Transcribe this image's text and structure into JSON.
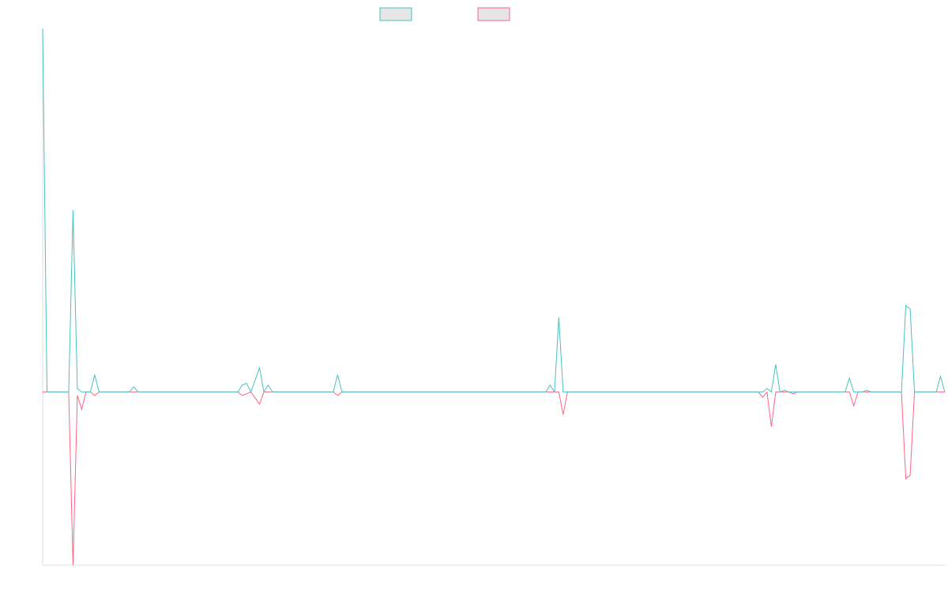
{
  "colors": {
    "series_a": "#4bc0c0",
    "series_b": "#ff6384",
    "legend_fill": "#e6e6e6",
    "axis": "#e0e0e0"
  },
  "chart_data": {
    "type": "line",
    "title": "",
    "xlabel": "",
    "ylabel": "",
    "legend": "top-center",
    "grid": false,
    "x_count": 208,
    "ylim": [
      -1,
      2.1
    ],
    "series": [
      {
        "name": "",
        "color": "#4bc0c0",
        "points": [
          [
            0,
            2.1
          ],
          [
            1,
            0
          ],
          [
            6,
            0
          ],
          [
            7,
            1.05
          ],
          [
            8,
            0.02
          ],
          [
            9,
            0
          ],
          [
            11,
            0
          ],
          [
            12,
            0.1
          ],
          [
            13,
            0
          ],
          [
            20,
            0
          ],
          [
            21,
            0.03
          ],
          [
            22,
            0
          ],
          [
            45,
            0
          ],
          [
            46,
            0.04
          ],
          [
            47,
            0.05
          ],
          [
            48,
            0
          ],
          [
            50,
            0.14
          ],
          [
            51,
            0
          ],
          [
            52,
            0.04
          ],
          [
            53,
            0
          ],
          [
            67,
            0
          ],
          [
            68,
            0.1
          ],
          [
            69,
            0
          ],
          [
            116,
            0
          ],
          [
            117,
            0.04
          ],
          [
            118,
            0
          ],
          [
            119,
            0.43
          ],
          [
            120,
            0
          ],
          [
            166,
            0
          ],
          [
            167,
            0.02
          ],
          [
            168,
            0
          ],
          [
            169,
            0.16
          ],
          [
            170,
            0
          ],
          [
            171,
            0.01
          ],
          [
            172,
            0
          ],
          [
            185,
            0
          ],
          [
            186,
            0.08
          ],
          [
            187,
            0
          ],
          [
            189,
            0
          ],
          [
            190,
            0.01
          ],
          [
            191,
            0
          ],
          [
            198,
            0
          ],
          [
            199,
            0.5
          ],
          [
            200,
            0.48
          ],
          [
            201,
            0
          ],
          [
            206,
            0
          ],
          [
            207,
            0.09
          ],
          [
            208,
            0
          ]
        ]
      },
      {
        "name": "",
        "color": "#ff6384",
        "points": [
          [
            0,
            0
          ],
          [
            1,
            0
          ],
          [
            6,
            0
          ],
          [
            7,
            -1
          ],
          [
            8,
            -0.02
          ],
          [
            9,
            -0.1
          ],
          [
            10,
            0
          ],
          [
            11,
            0
          ],
          [
            12,
            -0.02
          ],
          [
            13,
            0
          ],
          [
            45,
            0
          ],
          [
            46,
            -0.02
          ],
          [
            48,
            0
          ],
          [
            50,
            -0.07
          ],
          [
            51,
            0
          ],
          [
            67,
            0
          ],
          [
            68,
            -0.02
          ],
          [
            69,
            0
          ],
          [
            119,
            0
          ],
          [
            120,
            -0.13
          ],
          [
            121,
            0
          ],
          [
            165,
            0
          ],
          [
            166,
            -0.03
          ],
          [
            167,
            0
          ],
          [
            168,
            -0.2
          ],
          [
            169,
            0
          ],
          [
            172,
            0
          ],
          [
            173,
            -0.01
          ],
          [
            174,
            0
          ],
          [
            186,
            0
          ],
          [
            187,
            -0.08
          ],
          [
            188,
            0
          ],
          [
            198,
            0
          ],
          [
            199,
            -0.5
          ],
          [
            200,
            -0.48
          ],
          [
            201,
            0
          ],
          [
            208,
            0
          ]
        ]
      }
    ]
  }
}
